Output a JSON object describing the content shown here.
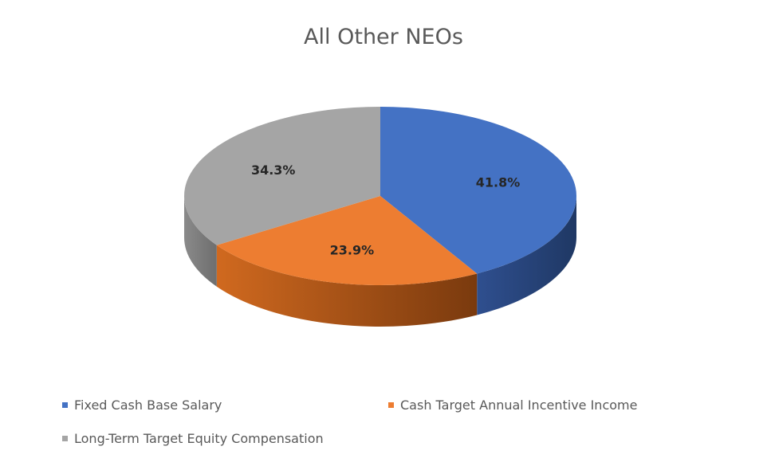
{
  "chart_data": {
    "type": "pie",
    "title": "All Other NEOs",
    "categories": [
      "Fixed Cash Base Salary",
      "Cash Target Annual Incentive Income",
      "Long-Term Target Equity Compensation"
    ],
    "values": [
      41.8,
      23.9,
      34.3
    ],
    "value_labels": [
      "41.8%",
      "23.9%",
      "34.3%"
    ],
    "colors": [
      "#4472C4",
      "#ED7D31",
      "#A5A5A5"
    ],
    "legend_position": "bottom",
    "style": "3d"
  }
}
